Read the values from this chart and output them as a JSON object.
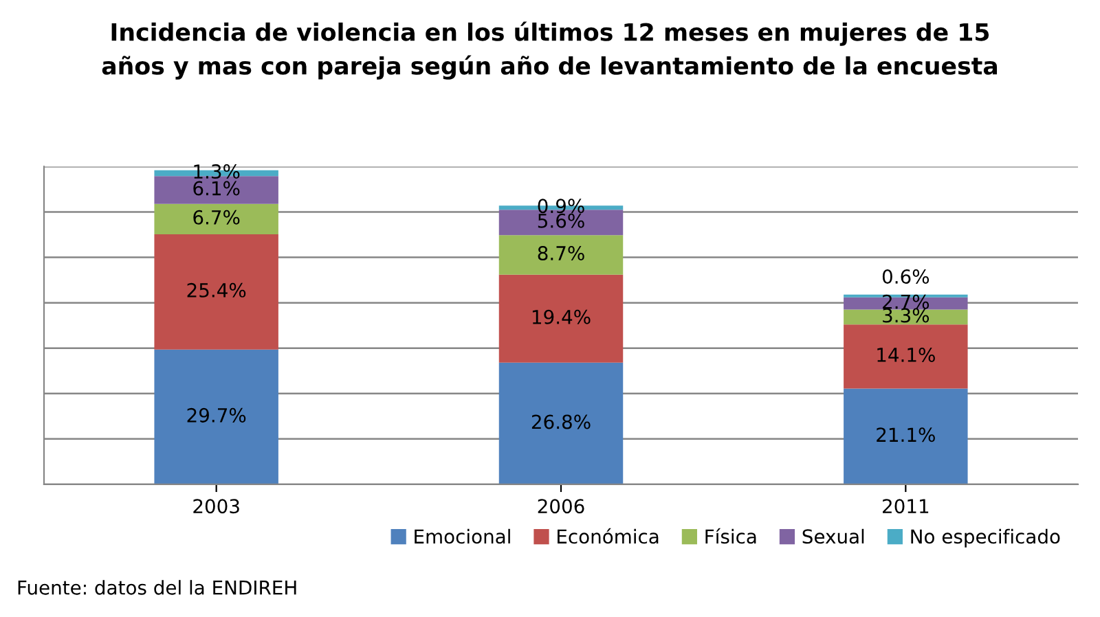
{
  "chart_data": {
    "type": "bar",
    "stacked": true,
    "title": "Incidencia de violencia en los últimos 12 meses en mujeres de 15\naños y mas con pareja según año de levantamiento de la encuesta",
    "categories": [
      "2003",
      "2006",
      "2011"
    ],
    "series": [
      {
        "name": "Emocional",
        "color": "#4f81bd",
        "values": [
          29.7,
          26.8,
          21.1
        ],
        "value_labels": [
          "29.7%",
          "26.8%",
          "21.1%"
        ]
      },
      {
        "name": "Económica",
        "color": "#c0504d",
        "values": [
          25.4,
          19.4,
          14.1
        ],
        "value_labels": [
          "25.4%",
          "19.4%",
          "14.1%"
        ]
      },
      {
        "name": "Física",
        "color": "#9bbb59",
        "values": [
          6.7,
          8.7,
          3.3
        ],
        "value_labels": [
          "6.7%",
          "8.7%",
          "3.3%"
        ]
      },
      {
        "name": "Sexual",
        "color": "#8064a2",
        "values": [
          6.1,
          5.6,
          2.7
        ],
        "value_labels": [
          "6.1%",
          "5.6%",
          "2.7%"
        ]
      },
      {
        "name": "No especificado",
        "color": "#4bacc6",
        "values": [
          1.3,
          0.9,
          0.6
        ],
        "value_labels": [
          "1.3%",
          "0.9%",
          "0.6%"
        ]
      }
    ],
    "ylim": [
      0,
      70
    ],
    "yticks": [
      {
        "value": 0,
        "label": null
      },
      {
        "value": 10,
        "label": null
      },
      {
        "value": 20,
        "label": null
      },
      {
        "value": 30,
        "label": null
      },
      {
        "value": 40,
        "label": null
      },
      {
        "value": 50,
        "label": null
      },
      {
        "value": 60,
        "label": null
      },
      {
        "value": 70,
        "label": null
      }
    ],
    "tick_labels": "x",
    "grid": "y",
    "legend": "bottom right",
    "annotations": [
      "Fuente: datos del la ENDIREH"
    ]
  }
}
